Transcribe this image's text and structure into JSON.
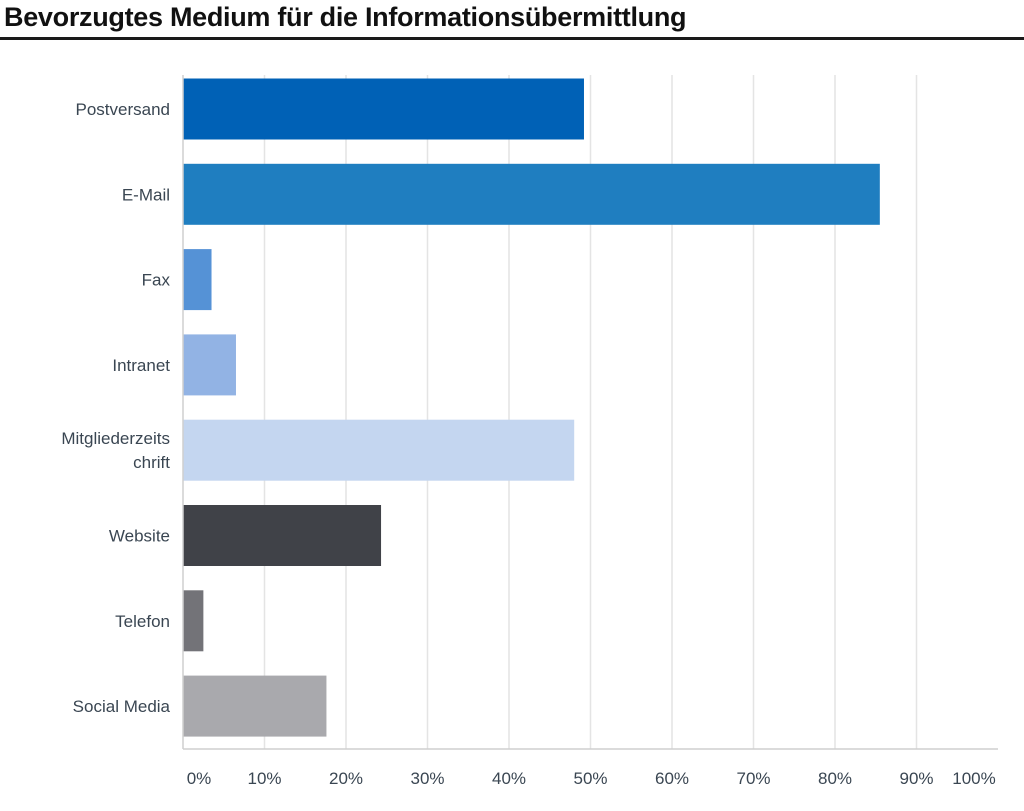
{
  "page": {
    "title": "Bevorzugtes Medium für die Informationsübermittlung"
  },
  "chart_data": {
    "type": "bar",
    "orientation": "horizontal",
    "title": "Bevorzugtes Medium für die Informationsübermittlung",
    "xlabel": "",
    "ylabel": "",
    "xlim": [
      0,
      100
    ],
    "grid": true,
    "categories": [
      [
        "Postversand"
      ],
      [
        "E-Mail"
      ],
      [
        "Fax"
      ],
      [
        "Intranet"
      ],
      [
        "Mitgliederzeits",
        "chrift"
      ],
      [
        "Website"
      ],
      [
        "Telefon"
      ],
      [
        "Social Media"
      ]
    ],
    "values": [
      49.2,
      85.5,
      3.5,
      6.5,
      48.0,
      24.3,
      2.5,
      17.6
    ],
    "colors": [
      "#0061b6",
      "#1f7ec0",
      "#5592d6",
      "#92b3e4",
      "#c4d6f0",
      "#404248",
      "#737378",
      "#a9a9ad"
    ],
    "ticks": [
      "0%",
      "10%",
      "20%",
      "30%",
      "40%",
      "50%",
      "60%",
      "70%",
      "80%",
      "90%",
      "100%"
    ]
  }
}
